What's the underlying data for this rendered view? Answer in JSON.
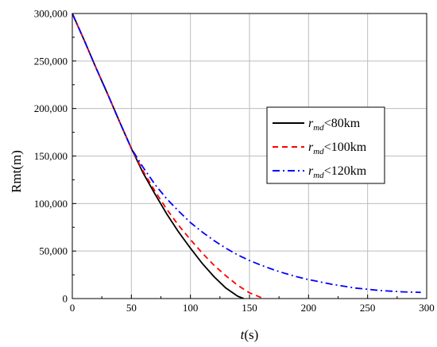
{
  "chart_data": {
    "type": "line",
    "xlabel_italic": "t",
    "xlabel_rest": "(s)",
    "ylabel": "Rmt(m)",
    "xlim": [
      0,
      300
    ],
    "ylim": [
      0,
      300000
    ],
    "x_ticks": [
      0,
      50,
      100,
      150,
      200,
      250,
      300
    ],
    "x_tick_labels": [
      "0",
      "50",
      "100",
      "150",
      "200",
      "250",
      "300"
    ],
    "y_ticks": [
      0,
      50000,
      100000,
      150000,
      200000,
      250000,
      300000
    ],
    "y_tick_labels": [
      "0",
      "50,000",
      "100,000",
      "150,000",
      "200,000",
      "250,000",
      "300,000"
    ],
    "grid": true,
    "legend_position": "center-right",
    "series": [
      {
        "name_var": "r",
        "name_sub": "md",
        "name_rest": "<80km",
        "color": "#000000",
        "dash": "solid",
        "x": [
          0,
          10,
          20,
          30,
          40,
          50,
          60,
          70,
          80,
          90,
          100,
          110,
          120,
          130,
          140,
          145
        ],
        "y": [
          300000,
          272000,
          243000,
          215000,
          186000,
          158000,
          132000,
          110000,
          89000,
          70000,
          53000,
          37000,
          23000,
          11000,
          2500,
          0
        ]
      },
      {
        "name_var": "r",
        "name_sub": "md",
        "name_rest": "<100km",
        "color": "#ff0000",
        "dash": "dashed",
        "x": [
          0,
          10,
          20,
          30,
          40,
          50,
          60,
          70,
          80,
          90,
          100,
          110,
          120,
          130,
          140,
          150,
          160,
          163
        ],
        "y": [
          300000,
          272000,
          243000,
          215000,
          186000,
          158000,
          134000,
          113000,
          94000,
          77000,
          62000,
          48000,
          35000,
          24000,
          14000,
          6000,
          1000,
          0
        ]
      },
      {
        "name_var": "r",
        "name_sub": "md",
        "name_rest": "<120km",
        "color": "#0000ff",
        "dash": "dashdot",
        "x": [
          0,
          10,
          20,
          30,
          40,
          50,
          60,
          70,
          80,
          90,
          100,
          110,
          120,
          130,
          140,
          150,
          160,
          170,
          180,
          190,
          200,
          220,
          240,
          260,
          280,
          295
        ],
        "y": [
          300000,
          272000,
          243000,
          215000,
          186000,
          158000,
          138000,
          120000,
          105000,
          92000,
          80000,
          70000,
          61000,
          53000,
          46000,
          40000,
          35000,
          30500,
          26500,
          23000,
          20000,
          15000,
          11000,
          8500,
          7000,
          6500
        ]
      }
    ]
  }
}
